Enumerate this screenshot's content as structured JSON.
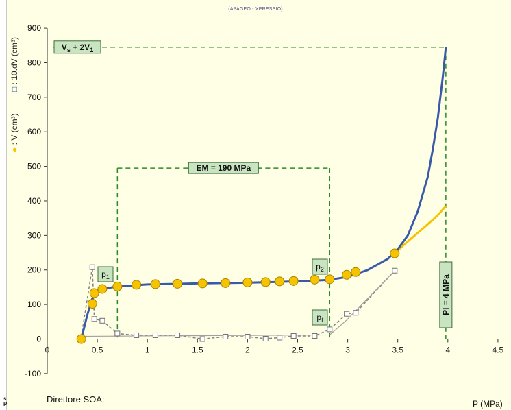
{
  "header": {
    "subtitle": "(APAGEO - XPRESSIO)"
  },
  "footer": {
    "director_label": "Direttore SOA:",
    "corner_text": "s\nP"
  },
  "chart_data": {
    "type": "line",
    "title": "",
    "subtitle": "(APAGEO - XPRESSIO)",
    "xlabel": "P (MPa)",
    "ylabel_series1": ": V (cm³)",
    "ylabel_series2": ": 10.dV (cm³)",
    "xlim": [
      0,
      4.5
    ],
    "ylim": [
      -100,
      900
    ],
    "xticks": [
      "0",
      "0.5",
      "1",
      "1.5",
      "2",
      "2.5",
      "3",
      "3.5",
      "4",
      "4.5"
    ],
    "yticks": [
      "-100",
      "0",
      "100",
      "200",
      "300",
      "400",
      "500",
      "600",
      "700",
      "800",
      "900"
    ],
    "grid": false,
    "colors": {
      "volume_points": "#f5c400",
      "fit_blue": "#3a5aa8",
      "fit_yellow": "#f5c400",
      "dv_line": "#808080",
      "guide": "#2a8a2a"
    },
    "series": [
      {
        "name": "V (cm³)",
        "marker": "circle",
        "x": [
          0.34,
          0.45,
          0.47,
          0.55,
          0.7,
          0.89,
          1.08,
          1.3,
          1.55,
          1.78,
          2.0,
          2.18,
          2.32,
          2.46,
          2.67,
          2.82,
          2.99,
          3.08,
          3.47
        ],
        "y": [
          0,
          102,
          133,
          145,
          152,
          157,
          159,
          160,
          161,
          162,
          164,
          165,
          167,
          168,
          172,
          173,
          186,
          194,
          248
        ]
      },
      {
        "name": "10.dV (cm³)",
        "marker": "square",
        "x": [
          0.45,
          0.47,
          0.55,
          0.7,
          0.89,
          1.08,
          1.3,
          1.55,
          1.78,
          2.0,
          2.18,
          2.32,
          2.46,
          2.67,
          2.82,
          2.99,
          3.08,
          3.47
        ],
        "y": [
          208,
          58,
          53,
          16,
          11,
          11,
          11,
          0,
          7,
          7,
          1,
          4,
          9,
          9,
          28,
          73,
          76,
          198
        ]
      }
    ],
    "fit_curves": {
      "blue": {
        "x": [
          0.34,
          0.4,
          0.45,
          0.55,
          0.7,
          1.0,
          1.5,
          2.0,
          2.5,
          2.8,
          3.0,
          3.2,
          3.4,
          3.5,
          3.6,
          3.7,
          3.8,
          3.85,
          3.9,
          3.95,
          3.98
        ],
        "y": [
          0,
          70,
          118,
          145,
          152,
          158,
          161,
          163,
          167,
          171,
          180,
          200,
          232,
          260,
          300,
          370,
          470,
          550,
          640,
          760,
          845
        ]
      },
      "yellow": {
        "x": [
          3.47,
          3.55,
          3.65,
          3.75,
          3.85,
          3.92,
          3.98
        ],
        "y": [
          248,
          270,
          295,
          320,
          345,
          365,
          385
        ]
      }
    },
    "annotations": [
      {
        "text": "EM = 190 MPa",
        "kind": "range-box",
        "x": [
          0.7,
          2.82
        ],
        "y": 495
      },
      {
        "text": "Vs + 2V1",
        "kind": "hline-label",
        "y": 845
      },
      {
        "text": "Pl = 4 MPa",
        "kind": "vline-label",
        "x": 3.98
      },
      {
        "text": "p1",
        "kind": "point-label"
      },
      {
        "text": "p2",
        "kind": "point-label"
      },
      {
        "text": "pf",
        "kind": "point-label"
      }
    ]
  }
}
